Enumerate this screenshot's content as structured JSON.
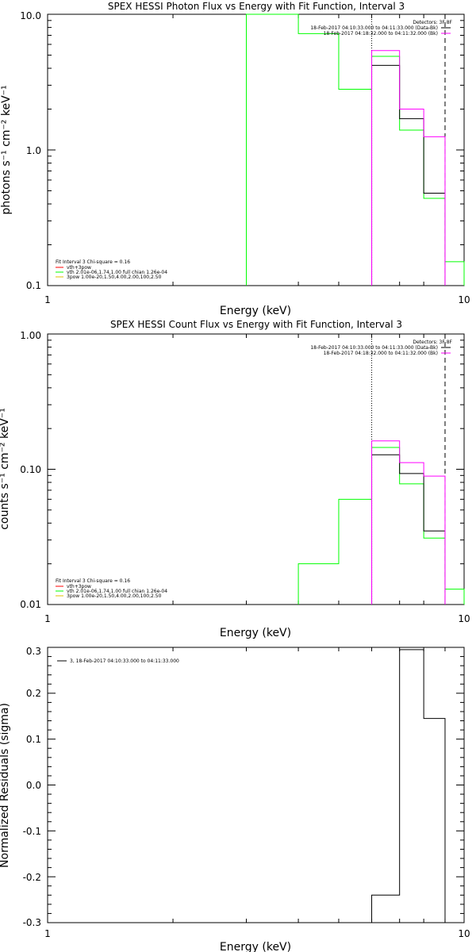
{
  "chart_data": [
    {
      "type": "line",
      "title": "SPEX HESSI Photon Flux vs Energy with Fit Function, Interval 3",
      "xlabel": "Energy (keV)",
      "ylabel": "photons s⁻¹ cm⁻² keV⁻¹",
      "xscale": "log",
      "yscale": "log",
      "xlim": [
        1,
        10
      ],
      "ylim": [
        0.1,
        10
      ],
      "xtick_labels": [
        "1",
        "10"
      ],
      "ytick_labels": [
        "0.1",
        "1.0",
        "10.0"
      ],
      "legend_top": [
        "Detectors: 3F 8F",
        "18-Feb-2017 04:10:33.000 to 04:11:33.000 (Data-Bk)",
        "18-Feb-2017 04:18:32.000 to 04:11:32.000 (Bk)"
      ],
      "legend_fit": {
        "header": "Fit Interval 3   Chi-square = 0.16",
        "items": [
          "vth+3pow",
          "vth 2.01e-06,1.74,1.00  full chian 1.26e-04",
          "3pow 1.00e-20,1.50,4.00,2.00,100,2.50"
        ]
      },
      "vlines": [
        {
          "x": 6.0,
          "style": "dotted"
        },
        {
          "x": 9.0,
          "style": "dashed"
        }
      ],
      "series": [
        {
          "color": "#00ff00",
          "edges": [
            3.0,
            4.0,
            5.0,
            6.0,
            7.0,
            8.0,
            9.0,
            10.0
          ],
          "values": [
            10.0,
            7.2,
            2.8,
            4.9,
            1.4,
            0.44,
            0.15
          ]
        },
        {
          "color": "#000000",
          "edges": [
            6.0,
            7.0,
            8.0,
            9.0
          ],
          "values": [
            4.2,
            1.7,
            0.48
          ]
        },
        {
          "color": "#ff00ff",
          "edges": [
            6.0,
            7.0,
            8.0,
            9.0
          ],
          "values": [
            5.4,
            2.0,
            1.25
          ]
        }
      ]
    },
    {
      "type": "line",
      "title": "SPEX HESSI Count Flux vs Energy with Fit Function, Interval 3",
      "xlabel": "Energy (keV)",
      "ylabel": "counts s⁻¹ cm⁻² keV⁻¹",
      "xscale": "log",
      "yscale": "log",
      "xlim": [
        1,
        10
      ],
      "ylim": [
        0.01,
        1.0
      ],
      "xtick_labels": [
        "1",
        "10"
      ],
      "ytick_labels": [
        "0.01",
        "0.10",
        "1.00"
      ],
      "legend_top": [
        "Detectors: 3F 8F",
        "18-Feb-2017 04:10:33.000 to 04:11:33.000 (Data-Bk)",
        "18-Feb-2017 04:18:32.000 to 04:11:32.000 (Bk)"
      ],
      "legend_fit": {
        "header": "Fit Interval 3   Chi-square = 0.16",
        "items": [
          "vth+3pow",
          "vth 2.01e-06,1.74,1.00  full chian 1.26e-04",
          "3pow 1.00e-20,1.50,4.00,2.00,100,2.50"
        ]
      },
      "vlines": [
        {
          "x": 6.0,
          "style": "dotted"
        },
        {
          "x": 9.0,
          "style": "dashed"
        }
      ],
      "series": [
        {
          "color": "#00ff00",
          "edges": [
            4.0,
            5.0,
            6.0,
            7.0,
            8.0,
            9.0,
            10.0
          ],
          "values": [
            0.02,
            0.06,
            0.145,
            0.078,
            0.031,
            0.013
          ]
        },
        {
          "color": "#000000",
          "edges": [
            6.0,
            7.0,
            8.0,
            9.0
          ],
          "values": [
            0.128,
            0.093,
            0.035
          ]
        },
        {
          "color": "#ff00ff",
          "edges": [
            6.0,
            7.0,
            8.0,
            9.0
          ],
          "values": [
            0.162,
            0.112,
            0.089
          ]
        }
      ]
    },
    {
      "type": "line",
      "title": "",
      "xlabel": "Energy (keV)",
      "ylabel": "Normalized Residuals (sigma)",
      "xscale": "log",
      "yscale": "linear",
      "xlim": [
        1,
        10
      ],
      "ylim": [
        -0.3,
        0.3
      ],
      "xtick_labels": [
        "1",
        "10"
      ],
      "ytick_labels": [
        "-0.3",
        "-0.2",
        "-0.1",
        "0.0",
        "0.1",
        "0.2",
        "0.3"
      ],
      "legend_top": [
        "3, 18-Feb-2017 04:10:33.000 to 04:11:33.000"
      ],
      "series": [
        {
          "color": "#000000",
          "edges": [
            6.0,
            7.0,
            8.0,
            9.0
          ],
          "values": [
            -0.24,
            0.295,
            0.145
          ]
        }
      ]
    }
  ]
}
